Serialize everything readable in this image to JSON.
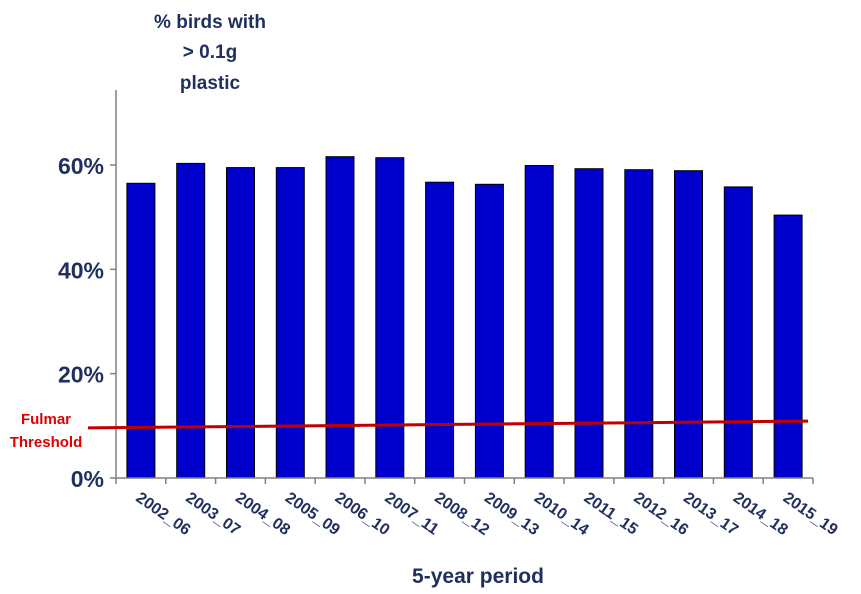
{
  "chart_data": {
    "type": "bar",
    "ylabel": "% birds with > 0.1g plastic",
    "ylabel_lines": [
      "% birds with",
      "> 0.1g",
      "plastic"
    ],
    "xlabel": "5-year period",
    "categories": [
      "2002_06",
      "2003_07",
      "2004_08",
      "2005_09",
      "2006_10",
      "2007_11",
      "2008_12",
      "2009_13",
      "2010_14",
      "2011_15",
      "2012_16",
      "2013_17",
      "2014_18",
      "2015_19"
    ],
    "values": [
      56.5,
      60.3,
      59.5,
      59.5,
      61.6,
      61.4,
      56.7,
      56.3,
      59.9,
      59.3,
      59.1,
      58.9,
      55.8,
      50.4
    ],
    "ylim": [
      0,
      60
    ],
    "yticks": [
      0,
      20,
      40,
      60
    ],
    "ytick_labels": [
      "0%",
      "20%",
      "40%",
      "60%"
    ],
    "threshold": {
      "label_lines": [
        "Fulmar",
        "Threshold"
      ],
      "start_value": 9.6,
      "end_value": 10.9
    },
    "colors": {
      "bar": "#0000cc",
      "bar_outline": "#000000",
      "text": "#1f2f5f",
      "axis": "#808080",
      "threshold": "#c00000"
    }
  }
}
